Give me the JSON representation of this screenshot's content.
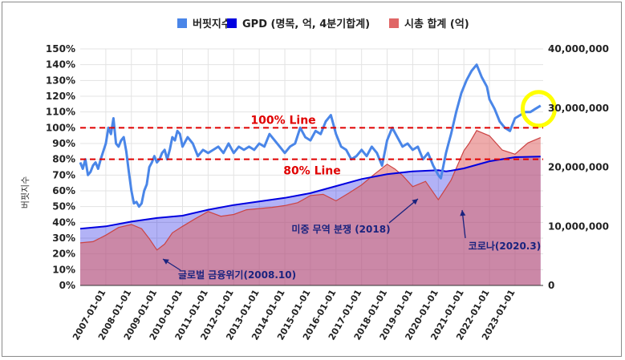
{
  "chart_data": {
    "type": "line",
    "title": "",
    "ylabel": "버핏지수",
    "ylabel_right": "",
    "ylim": [
      0,
      150
    ],
    "ylim_right": [
      0,
      40000000
    ],
    "y_ticks_left": [
      "0%",
      "10%",
      "20%",
      "30%",
      "40%",
      "50%",
      "60%",
      "70%",
      "80%",
      "90%",
      "100%",
      "110%",
      "120%",
      "130%",
      "140%",
      "150%"
    ],
    "y_ticks_right": [
      "0",
      "10,000,000",
      "20,000,000",
      "30,000,000",
      "40,000,000"
    ],
    "x_ticks": [
      "2007-01-01",
      "2008-01-01",
      "2009-01-01",
      "2010-01-01",
      "2011-01-01",
      "2012-01-01",
      "2013-01-01",
      "2014-01-01",
      "2015-01-01",
      "2016-01-01",
      "2017-01-01",
      "2018-01-01",
      "2019-01-01",
      "2020-01-01",
      "2021-01-01",
      "2022-01-01",
      "2023-01-01"
    ],
    "xlim": [
      2006.0,
      2024.1
    ],
    "legend_position": "top",
    "grid": true,
    "colors": {
      "buffett": "#4a86e8",
      "gdp": "#0000e0",
      "market_cap": "#e06666",
      "overlap": "#8e6aa8",
      "ref_line": "#e00000",
      "marker": "#ffff00"
    },
    "series": [
      {
        "name": "버핏지수",
        "axis": "left",
        "x": [
          2006.0,
          2006.1,
          2006.2,
          2006.3,
          2006.4,
          2006.5,
          2006.6,
          2006.7,
          2006.8,
          2006.9,
          2007.0,
          2007.1,
          2007.2,
          2007.3,
          2007.4,
          2007.5,
          2007.6,
          2007.7,
          2007.8,
          2007.9,
          2008.0,
          2008.1,
          2008.2,
          2008.3,
          2008.4,
          2008.5,
          2008.6,
          2008.7,
          2008.8,
          2008.9,
          2009.0,
          2009.1,
          2009.2,
          2009.3,
          2009.4,
          2009.5,
          2009.6,
          2009.7,
          2009.8,
          2009.9,
          2010.0,
          2010.2,
          2010.4,
          2010.6,
          2010.8,
          2011.0,
          2011.2,
          2011.4,
          2011.6,
          2011.8,
          2012.0,
          2012.2,
          2012.4,
          2012.6,
          2012.8,
          2013.0,
          2013.2,
          2013.4,
          2013.6,
          2013.8,
          2014.0,
          2014.2,
          2014.4,
          2014.6,
          2014.8,
          2015.0,
          2015.2,
          2015.4,
          2015.6,
          2015.8,
          2016.0,
          2016.2,
          2016.4,
          2016.6,
          2016.8,
          2017.0,
          2017.2,
          2017.4,
          2017.6,
          2017.8,
          2018.0,
          2018.2,
          2018.4,
          2018.6,
          2018.8,
          2019.0,
          2019.2,
          2019.4,
          2019.6,
          2019.8,
          2020.0,
          2020.1,
          2020.2,
          2020.3,
          2020.4,
          2020.5,
          2020.7,
          2020.9,
          2021.0,
          2021.1,
          2021.3,
          2021.5,
          2021.7,
          2021.9,
          2022.0,
          2022.2,
          2022.4,
          2022.6,
          2022.8,
          2023.0,
          2023.2,
          2023.4,
          2023.6,
          2023.8,
          2024.0
        ],
        "values": [
          78,
          74,
          80,
          70,
          72,
          76,
          78,
          74,
          80,
          85,
          90,
          100,
          96,
          106,
          90,
          88,
          92,
          94,
          85,
          72,
          60,
          52,
          53,
          50,
          52,
          60,
          64,
          75,
          78,
          82,
          78,
          80,
          84,
          86,
          80,
          86,
          94,
          92,
          98,
          96,
          88,
          94,
          90,
          82,
          86,
          84,
          86,
          88,
          84,
          90,
          84,
          88,
          86,
          88,
          86,
          90,
          88,
          96,
          92,
          88,
          84,
          88,
          90,
          100,
          94,
          92,
          98,
          96,
          104,
          108,
          96,
          88,
          86,
          80,
          82,
          86,
          82,
          88,
          84,
          76,
          92,
          100,
          94,
          88,
          90,
          86,
          88,
          80,
          84,
          76,
          70,
          68,
          76,
          84,
          90,
          96,
          110,
          122,
          126,
          130,
          136,
          140,
          132,
          126,
          118,
          112,
          104,
          100,
          98,
          106,
          108,
          110,
          110,
          112,
          114
        ]
      },
      {
        "name": "GPD (명목, 억, 4분기합계)",
        "axis": "right",
        "x": [
          2006.0,
          2007.0,
          2008.0,
          2009.0,
          2010.0,
          2011.0,
          2012.0,
          2013.0,
          2014.0,
          2015.0,
          2016.0,
          2017.0,
          2018.0,
          2019.0,
          2020.0,
          2020.3,
          2020.5,
          2021.0,
          2022.0,
          2023.0,
          2024.0
        ],
        "values": [
          9600000,
          10000000,
          10800000,
          11400000,
          11800000,
          12800000,
          13600000,
          14200000,
          14800000,
          15600000,
          16800000,
          18000000,
          18800000,
          19300000,
          19500000,
          19300000,
          19400000,
          19800000,
          21000000,
          21700000,
          21800000
        ]
      },
      {
        "name": "시총 합계 (억)",
        "axis": "right",
        "x": [
          2006.0,
          2006.5,
          2007.0,
          2007.5,
          2008.0,
          2008.4,
          2008.7,
          2009.0,
          2009.3,
          2009.6,
          2010.0,
          2010.5,
          2011.0,
          2011.5,
          2012.0,
          2012.5,
          2013.0,
          2013.5,
          2014.0,
          2014.5,
          2015.0,
          2015.5,
          2016.0,
          2016.5,
          2017.0,
          2017.5,
          2018.0,
          2018.3,
          2018.6,
          2019.0,
          2019.5,
          2020.0,
          2020.2,
          2020.5,
          2021.0,
          2021.2,
          2021.5,
          2022.0,
          2022.5,
          2023.0,
          2023.5,
          2024.0
        ],
        "values": [
          7200000,
          7400000,
          8500000,
          9800000,
          10300000,
          9600000,
          7900000,
          6000000,
          7000000,
          8900000,
          10000000,
          11300000,
          12500000,
          11700000,
          12000000,
          12800000,
          13000000,
          13200000,
          13500000,
          14000000,
          15200000,
          15400000,
          14300000,
          15600000,
          17000000,
          18800000,
          20500000,
          19700000,
          18600000,
          16700000,
          17600000,
          14500000,
          15800000,
          17800000,
          22800000,
          24000000,
          26200000,
          25300000,
          22900000,
          22200000,
          24100000,
          25000000
        ]
      }
    ],
    "annotations": [
      {
        "text": "100% Line",
        "type": "hline",
        "y": 100
      },
      {
        "text": "80% Line",
        "type": "hline",
        "y": 80
      },
      {
        "text": "글로벌 금융위기(2008.10)",
        "x": 2008.9,
        "y": 22
      },
      {
        "text": "미중 무역 분쟁 (2018)",
        "x": 2019.0,
        "y": 54
      },
      {
        "text": "코로나(2020.3)",
        "x": 2020.3,
        "y": 50
      }
    ]
  }
}
